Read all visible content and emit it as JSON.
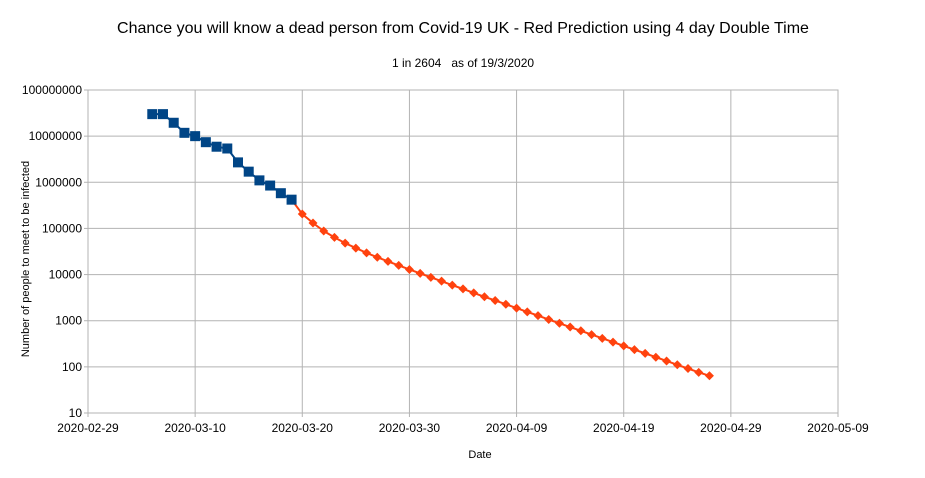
{
  "chart_data": {
    "type": "line",
    "title": "Chance you will know a dead person from Covid-19 UK - Red Prediction using 4 day Double Time",
    "subtitle": "1 in 2604   as of 19/3/2020",
    "xlabel": "Date",
    "ylabel": "Number of people to meet to be infected",
    "yscale": "log",
    "ylim": [
      10,
      100000000
    ],
    "xlim": [
      "2020-02-29",
      "2020-05-09"
    ],
    "grid": true,
    "legend": "none",
    "x_ticks": [
      "2020-02-29",
      "2020-03-10",
      "2020-03-20",
      "2020-03-30",
      "2020-04-09",
      "2020-04-19",
      "2020-04-29",
      "2020-05-09"
    ],
    "y_ticks": [
      "10",
      "100",
      "1000",
      "10000",
      "100000",
      "1000000",
      "10000000",
      "100000000"
    ],
    "series": [
      {
        "color": "#004586",
        "marker": "square",
        "points": [
          {
            "x": "2020-03-06",
            "y": 30000000
          },
          {
            "x": "2020-03-07",
            "y": 30000000
          },
          {
            "x": "2020-03-08",
            "y": 19500000
          },
          {
            "x": "2020-03-09",
            "y": 11800000
          },
          {
            "x": "2020-03-10",
            "y": 10000000
          },
          {
            "x": "2020-03-11",
            "y": 7400000
          },
          {
            "x": "2020-03-12",
            "y": 5900000
          },
          {
            "x": "2020-03-13",
            "y": 5400000
          },
          {
            "x": "2020-03-14",
            "y": 2700000
          },
          {
            "x": "2020-03-15",
            "y": 1700000
          },
          {
            "x": "2020-03-16",
            "y": 1100000
          },
          {
            "x": "2020-03-17",
            "y": 850000
          },
          {
            "x": "2020-03-18",
            "y": 580000
          },
          {
            "x": "2020-03-19",
            "y": 420000
          }
        ]
      },
      {
        "color": "#ff420e",
        "marker": "diamond",
        "daily_from": "2020-03-19",
        "values": [
          420000,
          205000,
          131000,
          88000,
          64000,
          48000,
          37500,
          29500,
          23700,
          19300,
          15800,
          12900,
          10600,
          8700,
          7200,
          5900,
          4900,
          4000,
          3300,
          2750,
          2270,
          1880,
          1550,
          1290,
          1060,
          880,
          730,
          605,
          500,
          415,
          344,
          285,
          236,
          196,
          162,
          134,
          111,
          92,
          76,
          64
        ]
      }
    ]
  }
}
